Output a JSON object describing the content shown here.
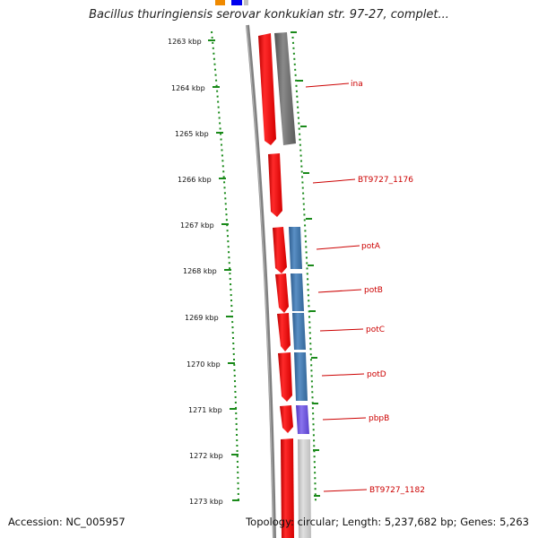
{
  "title": "Bacillus thuringiensis serovar konkukian str. 97-27, complet...",
  "footer": {
    "accession": "Accession: NC_005957",
    "summary": "Topology: circular; Length: 5,237,682 bp; Genes: 5,263"
  },
  "ruler": {
    "tick_labels": [
      "1263 kbp",
      "1264 kbp",
      "1265 kbp",
      "1266 kbp",
      "1267 kbp",
      "1268 kbp",
      "1269 kbp",
      "1270 kbp",
      "1271 kbp",
      "1272 kbp",
      "1273 kbp"
    ]
  },
  "gene_labels": [
    "ina",
    "BT9727_1176",
    "potA",
    "potB",
    "potC",
    "potD",
    "pbpB",
    "BT9727_1182"
  ],
  "colors": {
    "gene_red": "#e80000",
    "cog_gray": "#707070",
    "cog_blue": "#3b74ad",
    "cog_purple": "#6a4fd8",
    "cog_lightgray": "#c8c8c8",
    "backbone": "#808080",
    "ruler_green": "#1a8a1a",
    "label_red": "#cc0000",
    "top_orange": "#f08a00",
    "top_blue": "#0000ee"
  }
}
